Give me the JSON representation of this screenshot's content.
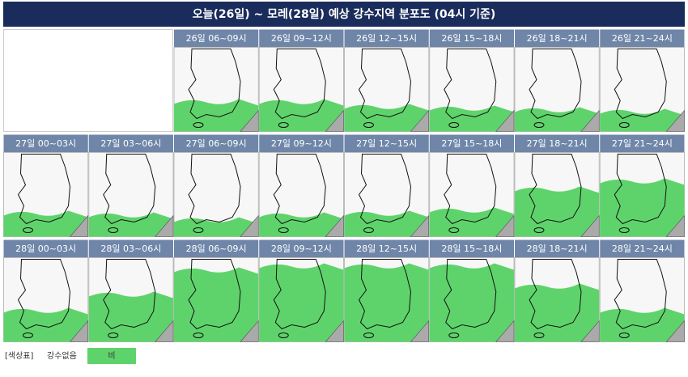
{
  "title": "오늘(26일) ~ 모레(28일) 예상 강수지역 분포도 (04시 기준)",
  "panels": [
    "26일 06~09시",
    "26일 09~12시",
    "26일 12~15시",
    "26일 15~18시",
    "26일 18~21시",
    "26일 21~24시",
    "27일 00~03시",
    "27일 03~06시",
    "27일 06~09시",
    "27일 09~12시",
    "27일 12~15시",
    "27일 15~18시",
    "27일 18~21시",
    "27일 21~24시",
    "28일 00~03시",
    "28일 03~06시",
    "28일 06~09시",
    "28일 09~12시",
    "28일 12~15시",
    "28일 15~18시",
    "28일 18~21시",
    "28일 21~24시"
  ],
  "legend": {
    "label": "[색상표]",
    "none": "강수없음",
    "rain": "비"
  }
}
